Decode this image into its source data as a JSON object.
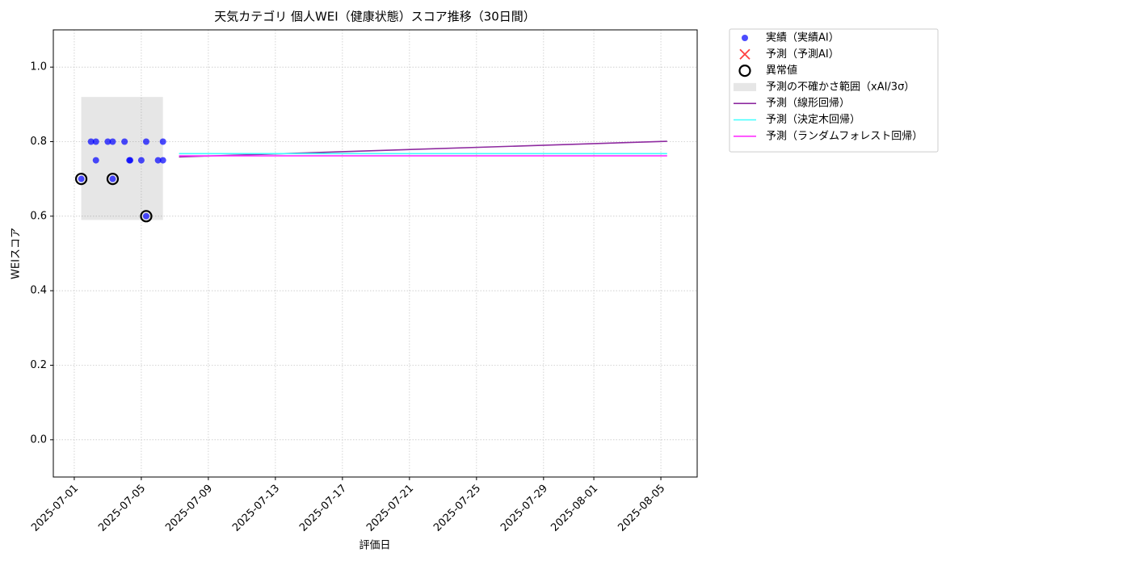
{
  "chart_data": {
    "type": "scatter",
    "title": "天気カテゴリ 個人WEI（健康状態）スコア推移（30日間）",
    "xlabel": "評価日",
    "ylabel": "WEIスコア",
    "xlim": [
      "2025-06-29T18:00",
      "2025-08-07T04:00"
    ],
    "ylim": [
      -0.1,
      1.1
    ],
    "xticks": [
      "2025-07-01",
      "2025-07-05",
      "2025-07-09",
      "2025-07-13",
      "2025-07-17",
      "2025-07-21",
      "2025-07-25",
      "2025-07-29",
      "2025-08-01",
      "2025-08-05"
    ],
    "yticks": [
      {
        "value": 0,
        "label": "0.0"
      },
      0.2,
      0.4,
      0.6,
      0.8,
      {
        "value": 1,
        "label": "1.0"
      }
    ],
    "grid": true,
    "legend": "outside",
    "series": [
      {
        "name": "実績（実績AI）",
        "type": "scatter",
        "color": "#0000ff",
        "x": [
          "2025-07-01T10:00",
          "2025-07-02T00:00",
          "2025-07-02T07:00",
          "2025-07-02T07:00",
          "2025-07-03T00:00",
          "2025-07-03T07:00",
          "2025-07-03T07:00",
          "2025-07-04T00:00",
          "2025-07-04T07:00",
          "2025-07-04T08:00",
          "2025-07-05T00:00",
          "2025-07-05T07:00",
          "2025-07-05T07:00",
          "2025-07-06T00:00",
          "2025-07-06T07:00",
          "2025-07-06T07:00"
        ],
        "values": [
          0.7,
          0.8,
          0.8,
          0.75,
          0.8,
          0.8,
          0.7,
          0.8,
          0.75,
          0.75,
          0.75,
          0.8,
          0.6,
          0.75,
          0.8,
          0.75
        ]
      },
      {
        "name": "予測（予測AI）",
        "type": "cross",
        "color": "#ff0000",
        "x": [],
        "values": []
      },
      {
        "name": "異常値",
        "type": "ring",
        "color": "#000000",
        "x": [
          "2025-07-01T10:00",
          "2025-07-03T07:00",
          "2025-07-05T07:00"
        ],
        "values": [
          0.7,
          0.7,
          0.6
        ]
      },
      {
        "name": "予測の不確かさ範囲（xAI/3σ）",
        "type": "band",
        "color": "#808080",
        "x": [
          "2025-07-01T10:00",
          "2025-07-06T07:00"
        ],
        "lower": [
          0.59,
          0.59
        ],
        "upper": [
          0.92,
          0.92
        ]
      },
      {
        "name": "予測（線形回帰）",
        "type": "line",
        "color": "#8e2aa0",
        "x": [
          "2025-07-07T06:00",
          "2025-08-05T09:00"
        ],
        "values": [
          0.759,
          0.801
        ]
      },
      {
        "name": "予測（決定木回帰）",
        "type": "line",
        "color": "#40ffff",
        "x": [
          "2025-07-07T06:00",
          "2025-08-05T09:00"
        ],
        "values": [
          0.768,
          0.768
        ]
      },
      {
        "name": "予測（ランダムフォレスト回帰）",
        "type": "line",
        "color": "#ff30ff",
        "x": [
          "2025-07-07T06:00",
          "2025-08-05T09:00"
        ],
        "values": [
          0.762,
          0.762
        ]
      }
    ]
  }
}
